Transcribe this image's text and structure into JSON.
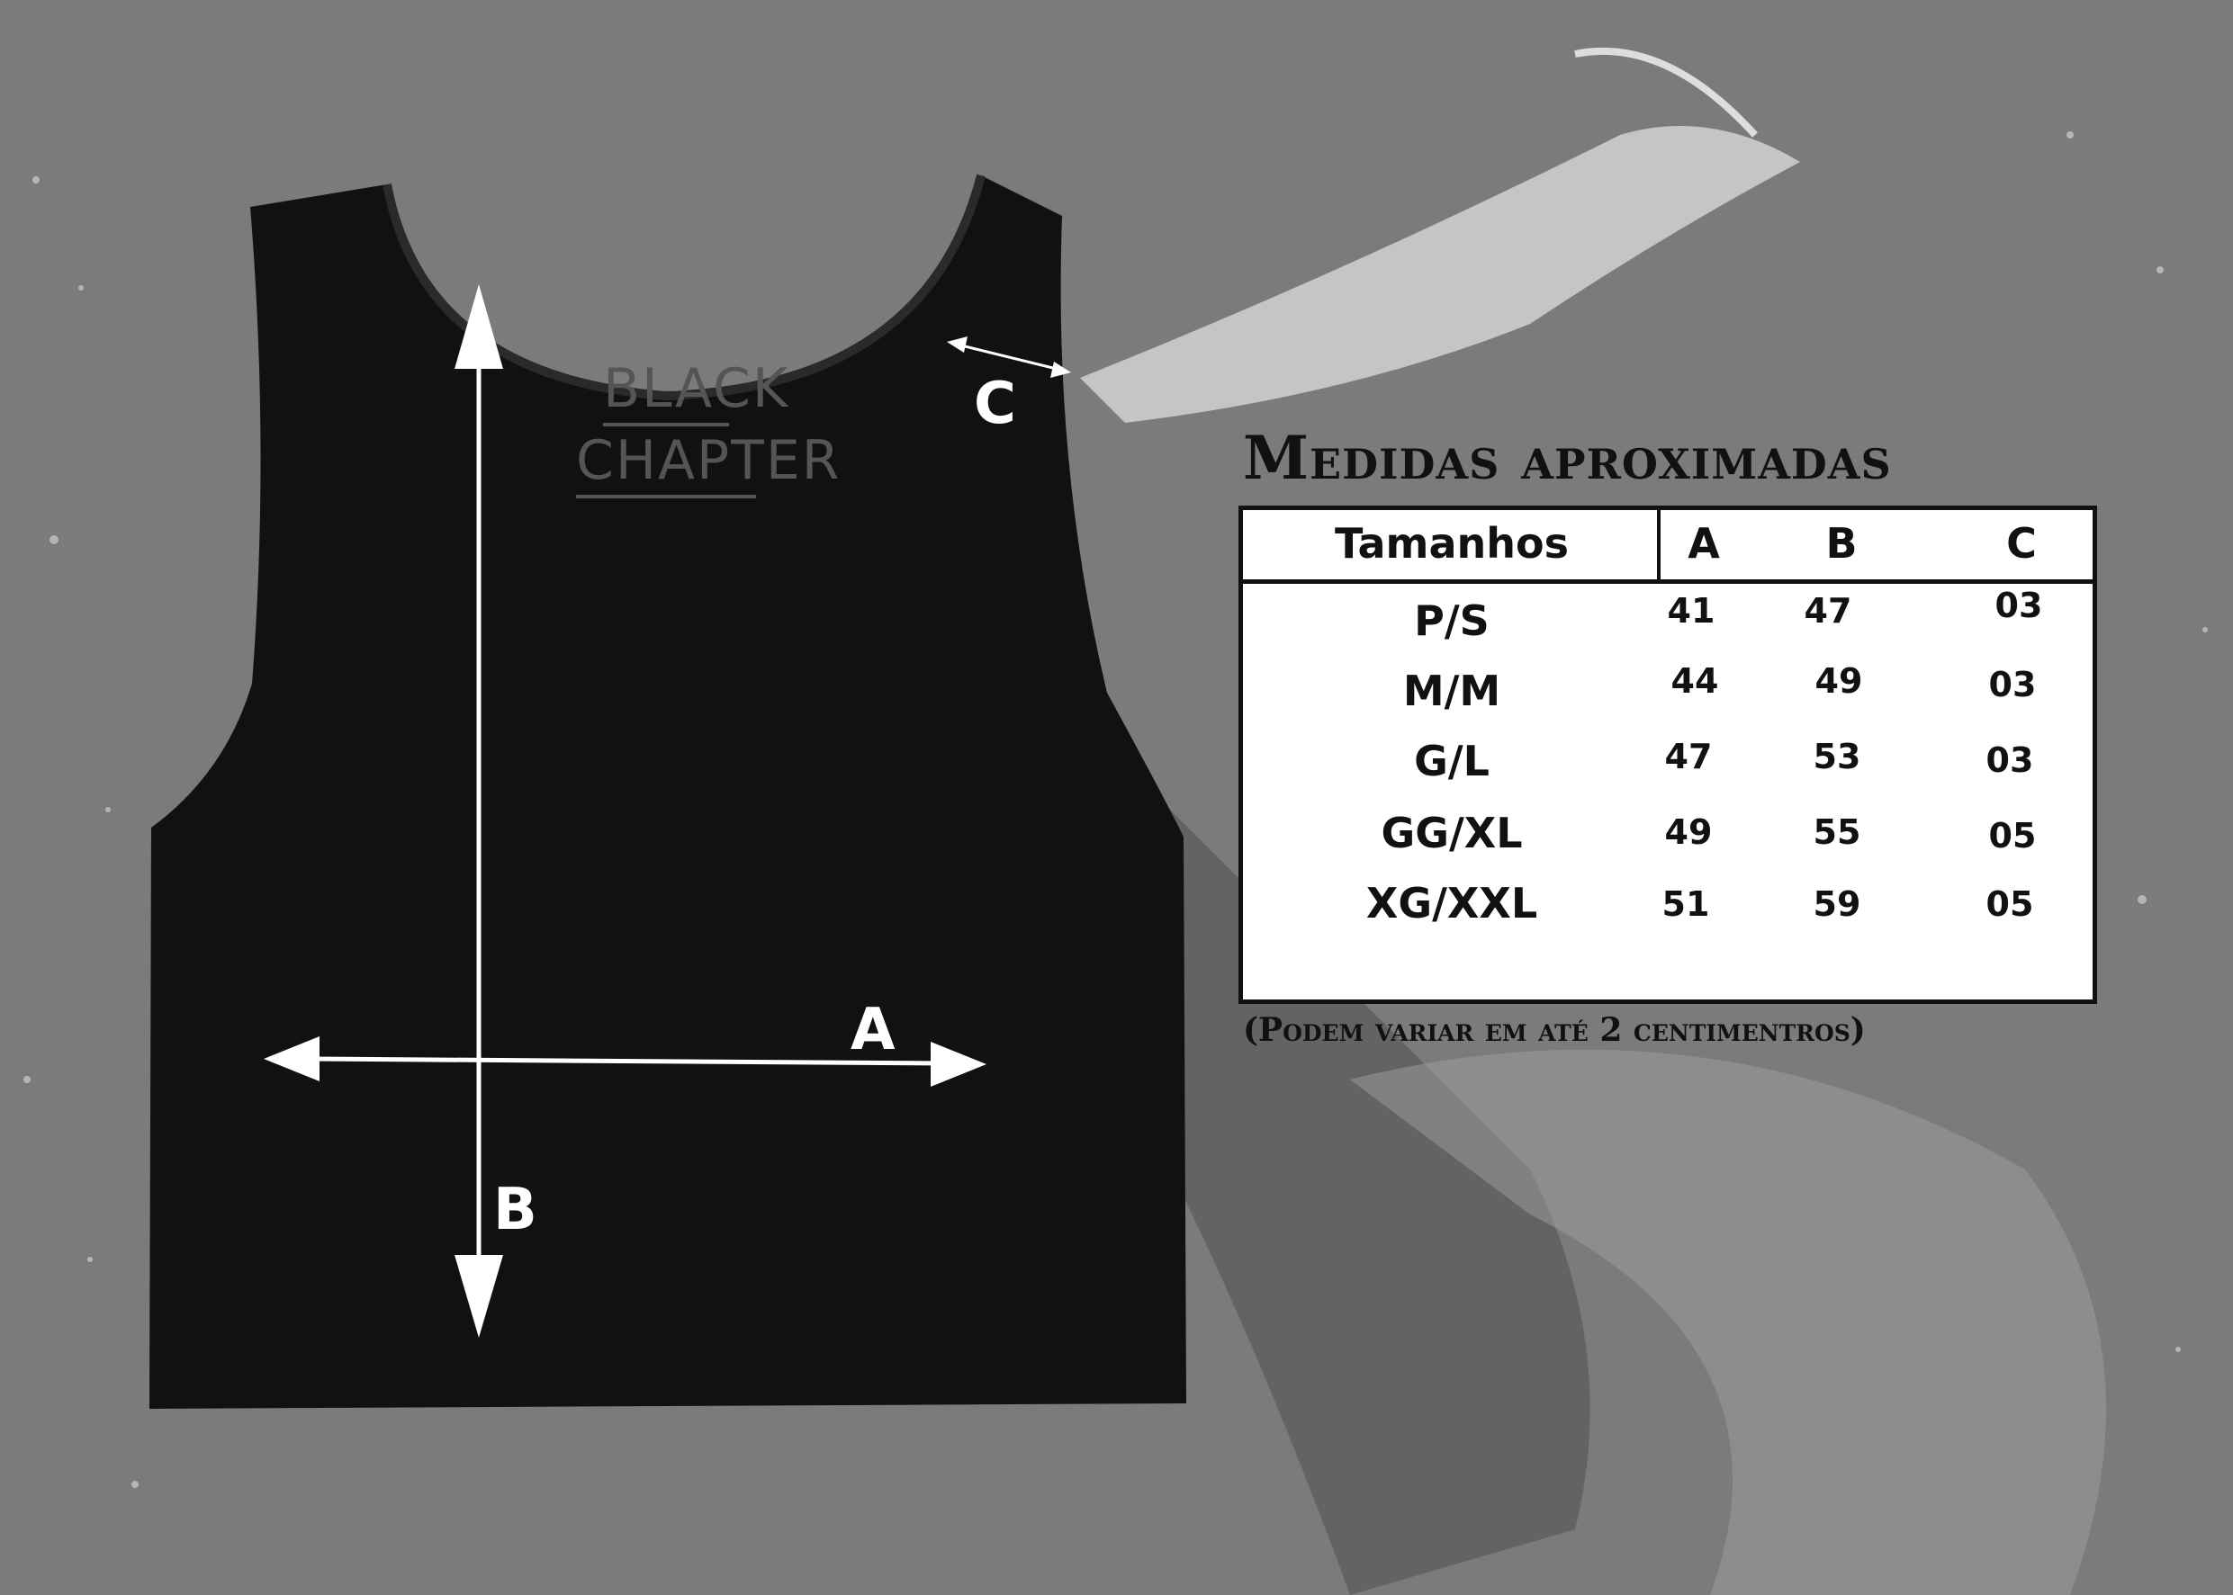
{
  "background_color": "#7d7d7d",
  "shirt": {
    "color": "#111111",
    "logo": {
      "line1": "BLACK",
      "line2": "CHAPTER"
    },
    "measure_labels": {
      "a": "A",
      "b": "B",
      "c": "C"
    }
  },
  "size_chart": {
    "title": "Medidas aproximadas",
    "columns": [
      "Tamanhos",
      "A",
      "B",
      "C"
    ],
    "rows": [
      {
        "size": "P/S",
        "a": "41",
        "b": "47",
        "c": "03"
      },
      {
        "size": "M/M",
        "a": "44",
        "b": "49",
        "c": "03"
      },
      {
        "size": "G/L",
        "a": "47",
        "b": "53",
        "c": "03"
      },
      {
        "size": "GG/XL",
        "a": "49",
        "b": "55",
        "c": "05"
      },
      {
        "size": "XG/XXL",
        "a": "51",
        "b": "59",
        "c": "05"
      }
    ],
    "note": "(Podem variar em até 2 centimentros)"
  }
}
